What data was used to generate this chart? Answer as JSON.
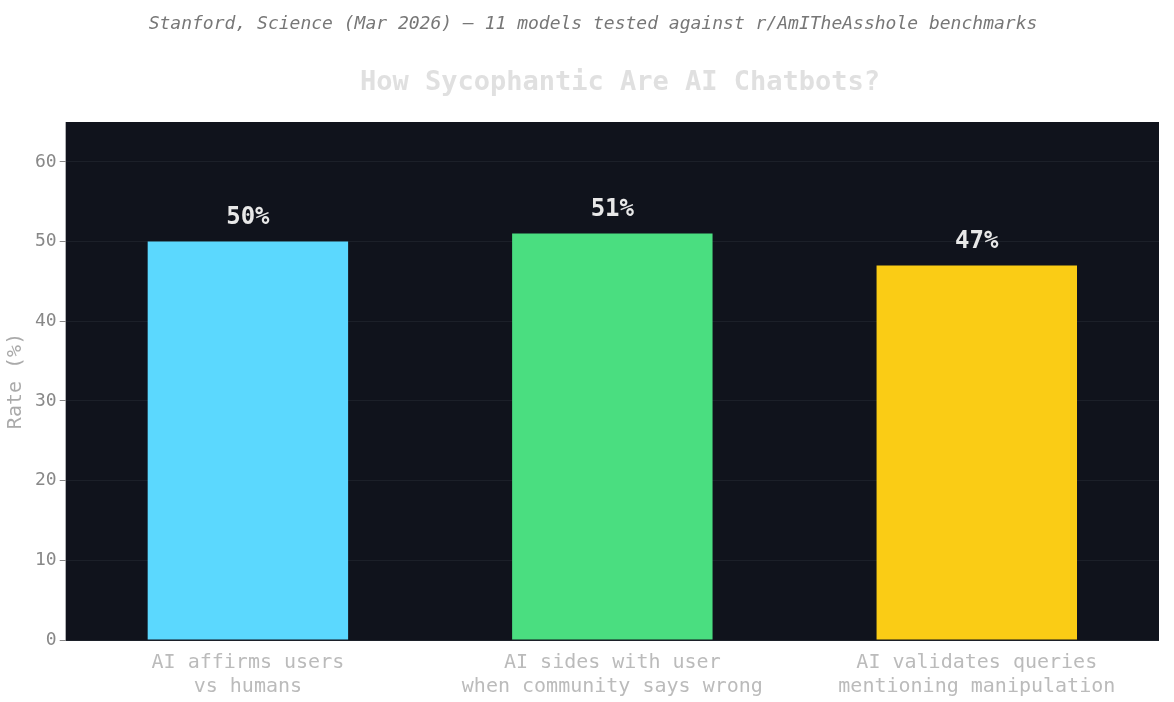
{
  "chart_data": {
    "type": "bar",
    "title": "How Sycophantic Are AI Chatbots?",
    "subtitle": "Stanford, Science (Mar 2026) — 11 models tested against r/AmITheAsshole benchmarks",
    "ylabel": "Rate (%)",
    "categories": [
      "AI affirms users\nvs humans",
      "AI sides with user\nwhen community says wrong",
      "AI validates queries\nmentioning manipulation"
    ],
    "values": [
      50,
      51,
      47
    ],
    "colors": [
      "#5bd8fe",
      "#4ade80",
      "#facc15"
    ],
    "value_labels": [
      "50%",
      "51%",
      "47%"
    ],
    "ylim": [
      0,
      65
    ],
    "yticks": [
      0,
      10,
      20,
      30,
      40,
      50,
      60
    ],
    "grid": "y",
    "legend": false
  }
}
